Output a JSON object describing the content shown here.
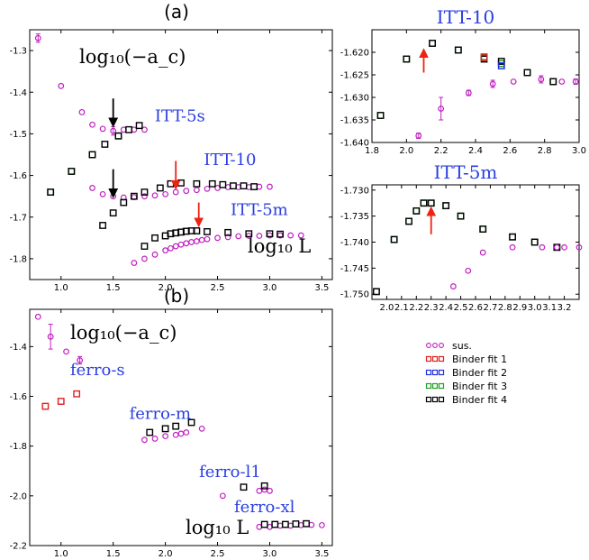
{
  "colors": {
    "sus": "#c020c0",
    "fit1": "#e02020",
    "fit2": "#2030e0",
    "fit3": "#20a020",
    "fit4": "#000000",
    "arrow_black": "#000000",
    "arrow_red": "#ee2211",
    "label_blue": "#2a3ee0"
  },
  "legend": {
    "entries": [
      "sus.",
      "Binder fit 1",
      "Binder fit 2",
      "Binder fit 3",
      "Binder fit 4"
    ]
  },
  "chart_data": [
    {
      "id": "a",
      "panel_label": "(a)",
      "type": "scatter",
      "xlim": [
        0.7,
        3.6
      ],
      "ylim": [
        -1.85,
        -1.25
      ],
      "xticks": [
        1.0,
        1.5,
        2.0,
        2.5,
        3.0,
        3.5
      ],
      "xtick_labels": [
        "1.0",
        "1.5",
        "2.0",
        "2.5",
        "3.0",
        "3.5"
      ],
      "yticks": [
        -1.3,
        -1.4,
        -1.5,
        -1.6,
        -1.7,
        -1.8
      ],
      "ytick_labels": [
        "-1.3",
        "-1.4",
        "-1.5",
        "-1.6",
        "-1.7",
        "-1.8"
      ],
      "ylabel_text": "log₁₀(−a_c)",
      "xlabel_text": "log₁₀ L",
      "annotations": [
        {
          "text": "ITT-5s",
          "x": 2.14,
          "y": -1.47
        },
        {
          "text": "ITT-10",
          "x": 2.62,
          "y": -1.575
        },
        {
          "text": "ITT-5m",
          "x": 2.9,
          "y": -1.695
        }
      ],
      "arrows": [
        {
          "color": "black",
          "x": 1.5,
          "y_from": -1.415,
          "y_to": -1.48
        },
        {
          "color": "black",
          "x": 1.5,
          "y_from": -1.585,
          "y_to": -1.65
        },
        {
          "color": "red",
          "x": 2.1,
          "y_from": -1.565,
          "y_to": -1.63
        },
        {
          "color": "red",
          "x": 2.32,
          "y_from": -1.665,
          "y_to": -1.72
        }
      ],
      "series": [
        {
          "name": "sus.",
          "marker": "circle",
          "color": "#c020c0",
          "x": [
            0.78,
            1.0,
            1.2,
            1.3,
            1.4,
            1.5,
            1.6,
            1.7,
            1.8
          ],
          "y": [
            -1.27,
            -1.385,
            -1.448,
            -1.478,
            -1.488,
            -1.493,
            -1.49,
            -1.49,
            -1.49
          ],
          "yerr": [
            0.01,
            0,
            0,
            0,
            0,
            0.01,
            0,
            0,
            0
          ]
        },
        {
          "name": "Binder fit 3",
          "marker": "square",
          "color": "#20a020",
          "x": [
            0.9,
            1.1,
            1.3,
            1.55
          ],
          "y": [
            -1.64,
            -1.59,
            -1.55,
            -1.505
          ]
        },
        {
          "name": "Binder fit 4",
          "marker": "square",
          "color": "#000000",
          "x": [
            0.9,
            1.1,
            1.3,
            1.42,
            1.55,
            1.65,
            1.75
          ],
          "y": [
            -1.64,
            -1.59,
            -1.55,
            -1.525,
            -1.505,
            -1.49,
            -1.48
          ]
        },
        {
          "name": "sus.",
          "marker": "circle",
          "color": "#c020c0",
          "x": [
            1.3,
            1.4,
            1.5,
            1.6,
            1.7,
            1.8,
            1.9,
            2.0,
            2.1,
            2.2,
            2.3,
            2.4,
            2.5,
            2.6,
            2.7,
            2.8,
            2.9,
            3.0
          ],
          "y": [
            -1.63,
            -1.645,
            -1.65,
            -1.653,
            -1.652,
            -1.65,
            -1.648,
            -1.645,
            -1.64,
            -1.637,
            -1.635,
            -1.632,
            -1.63,
            -1.628,
            -1.628,
            -1.628,
            -1.627,
            -1.627
          ],
          "yerr": [
            0,
            0,
            0,
            0,
            0,
            0,
            0,
            0,
            0,
            0,
            0,
            0,
            0,
            0,
            0,
            0,
            0,
            0
          ]
        },
        {
          "name": "Binder fit 4",
          "marker": "square",
          "color": "#000000",
          "x": [
            1.4,
            1.5,
            1.6,
            1.7,
            1.8,
            1.95,
            2.05,
            2.15,
            2.3,
            2.45,
            2.55,
            2.65,
            2.75,
            2.85
          ],
          "y": [
            -1.72,
            -1.69,
            -1.665,
            -1.65,
            -1.64,
            -1.63,
            -1.62,
            -1.618,
            -1.62,
            -1.62,
            -1.622,
            -1.625,
            -1.625,
            -1.627
          ]
        },
        {
          "name": "sus.",
          "marker": "circle",
          "color": "#c020c0",
          "x": [
            1.7,
            1.8,
            1.9,
            2.0,
            2.05,
            2.1,
            2.15,
            2.2,
            2.25,
            2.3,
            2.35,
            2.4,
            2.5,
            2.6,
            2.7,
            2.8,
            2.9,
            3.0,
            3.1,
            3.2,
            3.3
          ],
          "y": [
            -1.81,
            -1.8,
            -1.79,
            -1.78,
            -1.775,
            -1.77,
            -1.766,
            -1.763,
            -1.76,
            -1.758,
            -1.755,
            -1.753,
            -1.75,
            -1.748,
            -1.746,
            -1.745,
            -1.745,
            -1.744,
            -1.744,
            -1.744,
            -1.744
          ],
          "yerr": [
            0,
            0,
            0,
            0,
            0,
            0,
            0,
            0,
            0,
            0,
            0,
            0,
            0,
            0,
            0,
            0,
            0,
            0,
            0,
            0,
            0
          ]
        },
        {
          "name": "Binder fit 4",
          "marker": "square",
          "color": "#000000",
          "x": [
            1.8,
            1.9,
            2.0,
            2.05,
            2.1,
            2.15,
            2.2,
            2.25,
            2.3,
            2.4,
            2.6,
            2.8,
            3.0,
            3.1
          ],
          "y": [
            -1.77,
            -1.75,
            -1.745,
            -1.74,
            -1.738,
            -1.736,
            -1.734,
            -1.733,
            -1.733,
            -1.735,
            -1.737,
            -1.74,
            -1.74,
            -1.741
          ]
        }
      ]
    },
    {
      "id": "b",
      "panel_label": "(b)",
      "type": "scatter",
      "xlim": [
        0.7,
        3.6
      ],
      "ylim": [
        -2.2,
        -1.25
      ],
      "xticks": [
        1.0,
        1.5,
        2.0,
        2.5,
        3.0,
        3.5
      ],
      "xtick_labels": [
        "1.0",
        "1.5",
        "2.0",
        "2.5",
        "3.0",
        "3.5"
      ],
      "yticks": [
        -1.4,
        -1.6,
        -1.8,
        -2.0,
        -2.2
      ],
      "ytick_labels": [
        "-1.4",
        "-1.6",
        "-1.8",
        "-2.0",
        "-2.2"
      ],
      "ylabel_text": "log₁₀(−a_c)",
      "xlabel_text": "log₁₀ L",
      "annotations": [
        {
          "text": "ferro-s",
          "x": 1.35,
          "y": -1.515
        },
        {
          "text": "ferro-m",
          "x": 1.95,
          "y": -1.69
        },
        {
          "text": "ferro-l1",
          "x": 2.62,
          "y": -1.925
        },
        {
          "text": "ferro-xl",
          "x": 2.95,
          "y": -2.065
        }
      ],
      "series": [
        {
          "name": "sus.",
          "marker": "circle",
          "color": "#c020c0",
          "x": [
            0.78,
            0.9,
            1.05,
            1.18
          ],
          "y": [
            -1.28,
            -1.36,
            -1.42,
            -1.455
          ],
          "yerr": [
            0,
            0.05,
            0,
            0.015
          ]
        },
        {
          "name": "Binder fit 1",
          "marker": "square",
          "color": "#e02020",
          "x": [
            0.85,
            1.0,
            1.15
          ],
          "y": [
            -1.64,
            -1.62,
            -1.59
          ]
        },
        {
          "name": "sus.",
          "marker": "circle",
          "color": "#c020c0",
          "x": [
            1.8,
            1.9,
            2.0,
            2.1,
            2.15,
            2.2,
            2.35
          ],
          "y": [
            -1.775,
            -1.77,
            -1.76,
            -1.755,
            -1.75,
            -1.745,
            -1.73
          ],
          "yerr": [
            0,
            0,
            0,
            0,
            0,
            0,
            0
          ]
        },
        {
          "name": "Binder fit 4",
          "marker": "square",
          "color": "#000000",
          "x": [
            1.85,
            2.0,
            2.1,
            2.25
          ],
          "y": [
            -1.745,
            -1.73,
            -1.72,
            -1.705
          ]
        },
        {
          "name": "sus.",
          "marker": "circle",
          "color": "#c020c0",
          "x": [
            2.55,
            2.9,
            2.95,
            3.0
          ],
          "y": [
            -2.0,
            -1.98,
            -1.975,
            -1.98
          ],
          "yerr": [
            0,
            0,
            0,
            0
          ]
        },
        {
          "name": "Binder fit 4",
          "marker": "square",
          "color": "#000000",
          "x": [
            2.75,
            2.95
          ],
          "y": [
            -1.965,
            -1.96
          ]
        },
        {
          "name": "sus.",
          "marker": "circle",
          "color": "#c020c0",
          "x": [
            2.9,
            3.0,
            3.1,
            3.2,
            3.3,
            3.4,
            3.5
          ],
          "y": [
            -2.125,
            -2.125,
            -2.12,
            -2.12,
            -2.118,
            -2.117,
            -2.118
          ],
          "yerr": [
            0,
            0,
            0,
            0,
            0,
            0,
            0
          ]
        },
        {
          "name": "Binder fit 4",
          "marker": "square",
          "color": "#000000",
          "x": [
            2.95,
            3.05,
            3.15,
            3.25,
            3.35
          ],
          "y": [
            -2.115,
            -2.115,
            -2.115,
            -2.113,
            -2.112
          ]
        }
      ]
    },
    {
      "id": "c",
      "title": "ITT-10",
      "type": "scatter",
      "xlim": [
        1.8,
        3.0
      ],
      "ylim": [
        -1.64,
        -1.615
      ],
      "xticks": [
        1.8,
        2.0,
        2.2,
        2.4,
        2.6,
        2.8,
        3.0
      ],
      "xtick_labels": [
        "1.8",
        "2.0",
        "2.2",
        "2.4",
        "2.6",
        "2.8",
        "3.0"
      ],
      "yticks": [
        -1.62,
        -1.625,
        -1.63,
        -1.635,
        -1.64
      ],
      "ytick_labels": [
        "-1.620",
        "-1.625",
        "-1.630",
        "-1.635",
        "-1.640"
      ],
      "arrows": [
        {
          "color": "red",
          "x": 2.1,
          "y_from": -1.6245,
          "y_to": -1.6195
        }
      ],
      "series": [
        {
          "name": "Binder fit 3",
          "marker": "square",
          "color": "#20a020",
          "x": [
            1.85,
            2.0,
            2.15,
            2.3,
            2.45,
            2.55,
            2.7,
            2.85
          ],
          "y": [
            -1.634,
            -1.6215,
            -1.618,
            -1.6195,
            -1.621,
            -1.6225,
            -1.6245,
            -1.6265
          ]
        },
        {
          "name": "Binder fit 4",
          "marker": "square",
          "color": "#000000",
          "x": [
            1.85,
            2.0,
            2.15,
            2.3,
            2.45,
            2.55,
            2.7,
            2.85
          ],
          "y": [
            -1.634,
            -1.6215,
            -1.618,
            -1.6195,
            -1.6215,
            -1.622,
            -1.6245,
            -1.6265
          ]
        },
        {
          "name": "Binder fit 2",
          "marker": "square",
          "color": "#2030e0",
          "x": [
            2.55
          ],
          "y": [
            -1.623
          ]
        },
        {
          "name": "Binder fit 1",
          "marker": "square",
          "color": "#e02020",
          "x": [
            2.45
          ],
          "y": [
            -1.6212
          ]
        },
        {
          "name": "sus.",
          "marker": "circle",
          "color": "#c020c0",
          "x": [
            2.07,
            2.2,
            2.36,
            2.5,
            2.62,
            2.78,
            2.9,
            2.98
          ],
          "y": [
            -1.6385,
            -1.6325,
            -1.629,
            -1.627,
            -1.6265,
            -1.626,
            -1.6265,
            -1.6265
          ],
          "yerr": [
            0.0006,
            0.0025,
            0.0006,
            0.0008,
            0,
            0.0008,
            0,
            0.0006
          ]
        }
      ]
    },
    {
      "id": "d",
      "title": "ITT-5m",
      "type": "scatter",
      "xlim": [
        1.9,
        3.3
      ],
      "ylim": [
        -1.751,
        -1.729
      ],
      "xticks": [
        2.0,
        2.1,
        2.2,
        2.3,
        2.4,
        2.5,
        2.6,
        2.7,
        2.8,
        2.9,
        3.0,
        3.1,
        3.2
      ],
      "xtick_labels": [
        "2.0",
        "2.1",
        "2.2",
        "2.3",
        "2.4",
        "2.5",
        "2.6",
        "2.7",
        "2.8",
        "2.9",
        "3.0",
        "3.1",
        "3.2"
      ],
      "yticks": [
        -1.73,
        -1.735,
        -1.74,
        -1.745,
        -1.75
      ],
      "ytick_labels": [
        "-1.730",
        "-1.735",
        "-1.740",
        "-1.745",
        "-1.750"
      ],
      "arrows": [
        {
          "color": "red",
          "x": 2.3,
          "y_from": -1.7385,
          "y_to": -1.7335
        }
      ],
      "series": [
        {
          "name": "Binder fit 3",
          "marker": "square",
          "color": "#20a020",
          "x": [
            1.93,
            2.05,
            2.15,
            2.2,
            2.25,
            2.3,
            2.4,
            2.5,
            2.65,
            2.85,
            3.0,
            3.15
          ],
          "y": [
            -1.7495,
            -1.7395,
            -1.736,
            -1.734,
            -1.7325,
            -1.7325,
            -1.733,
            -1.735,
            -1.7375,
            -1.739,
            -1.74,
            -1.741
          ]
        },
        {
          "name": "Binder fit 4",
          "marker": "square",
          "color": "#000000",
          "x": [
            1.93,
            2.05,
            2.15,
            2.2,
            2.25,
            2.3,
            2.4,
            2.5,
            2.65,
            2.85,
            3.0,
            3.15
          ],
          "y": [
            -1.7495,
            -1.7395,
            -1.736,
            -1.734,
            -1.7325,
            -1.7325,
            -1.733,
            -1.735,
            -1.7375,
            -1.739,
            -1.74,
            -1.741
          ]
        },
        {
          "name": "sus.",
          "marker": "circle",
          "color": "#c020c0",
          "x": [
            2.45,
            2.55,
            2.65,
            2.85,
            3.05,
            3.15,
            3.2,
            3.3
          ],
          "y": [
            -1.7485,
            -1.7455,
            -1.742,
            -1.741,
            -1.741,
            -1.741,
            -1.741,
            -1.741
          ],
          "yerr": [
            0,
            0,
            0,
            0,
            0,
            0,
            0,
            0
          ]
        }
      ]
    }
  ]
}
